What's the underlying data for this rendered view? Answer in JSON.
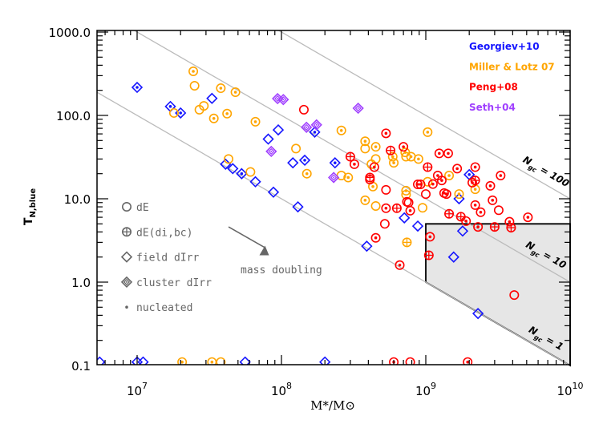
{
  "chart_data": {
    "type": "scatter",
    "xlabel": "M*/M⊙",
    "ylabel": "T_N,blue",
    "xscale": "log",
    "yscale": "log",
    "xlim": [
      5270000.0,
      10000000000.0
    ],
    "ylim": [
      0.102,
      1045
    ],
    "x_ticks": [
      {
        "value": 10000000.0,
        "base": "10",
        "exp": "7"
      },
      {
        "value": 100000000.0,
        "base": "10",
        "exp": "8"
      },
      {
        "value": 1000000000.0,
        "base": "10",
        "exp": "9"
      },
      {
        "value": 10000000000.0,
        "base": "10",
        "exp": "10"
      }
    ],
    "y_ticks": [
      {
        "value": 1000,
        "label": "1000.0"
      },
      {
        "value": 100,
        "label": "100.0"
      },
      {
        "value": 10,
        "label": "10.0"
      },
      {
        "value": 1,
        "label": "1.0"
      },
      {
        "value": 0.1,
        "label": "0.1"
      }
    ],
    "grid": false,
    "reference_lines": [
      {
        "ngc": 1,
        "label": "N",
        "sub": "gc",
        "eq": " = 1"
      },
      {
        "ngc": 10,
        "label": "N",
        "sub": "gc",
        "eq": " = 10"
      },
      {
        "ngc": 100,
        "label": "N",
        "sub": "gc",
        "eq": " = 100"
      }
    ],
    "shaded_region": [
      [
        1000000000.0,
        5
      ],
      [
        10000000000.0,
        5
      ],
      [
        10000000000.0,
        0.1
      ],
      [
        1000000000.0,
        1
      ]
    ],
    "annotation": {
      "text": "mass doubling",
      "arrow_from": [
        43000000.0,
        4.6
      ],
      "arrow_to": [
        82000000.0,
        2.4
      ]
    },
    "symbol_legend": [
      {
        "symbol": "circle",
        "nuc": 0,
        "label": "dE"
      },
      {
        "symbol": "circle-cross",
        "nuc": 0,
        "label": "dE(di,bc)"
      },
      {
        "symbol": "diamond",
        "nuc": 0,
        "label": "field dIrr"
      },
      {
        "symbol": "double-diamond",
        "nuc": 0,
        "label": "cluster dIrr"
      },
      {
        "symbol": "dot",
        "nuc": 1,
        "label": "nucleated"
      }
    ],
    "legend_placement": "top-right",
    "series": [
      {
        "name": "Georgiev+10",
        "color": "#1515ff",
        "points": [
          [
            10000000.0,
            217,
            "diamond",
            1
          ],
          [
            17000000.0,
            128,
            "diamond",
            1
          ],
          [
            20000000.0,
            107,
            "diamond",
            1
          ],
          [
            33000000.0,
            160,
            "diamond",
            0
          ],
          [
            41000000.0,
            26,
            "diamond",
            0
          ],
          [
            46000000.0,
            23,
            "diamond",
            0
          ],
          [
            53000000.0,
            20,
            "diamond",
            1
          ],
          [
            66000000.0,
            16,
            "diamond",
            0
          ],
          [
            88000000.0,
            12,
            "diamond",
            0
          ],
          [
            81000000.0,
            52,
            "diamond",
            0
          ],
          [
            95000000.0,
            67,
            "diamond",
            0
          ],
          [
            120000000.0,
            27,
            "diamond",
            0
          ],
          [
            145000000.0,
            29,
            "diamond",
            1
          ],
          [
            170000000.0,
            63,
            "diamond",
            1
          ],
          [
            130000000.0,
            8,
            "diamond",
            0
          ],
          [
            235000000.0,
            27,
            "diamond",
            1
          ],
          [
            390000000.0,
            2.7,
            "diamond",
            0
          ],
          [
            710000000.0,
            5.9,
            "diamond",
            0
          ],
          [
            880000000.0,
            4.7,
            "diamond",
            0
          ],
          [
            1700000000.0,
            10,
            "diamond",
            0
          ],
          [
            1800000000.0,
            4.1,
            "diamond",
            0
          ],
          [
            1560000000.0,
            2.0,
            "diamond",
            0
          ],
          [
            2300000000.0,
            0.42,
            "diamond",
            0
          ],
          [
            2000000000.0,
            19.5,
            "diamond",
            1
          ],
          [
            5500000.0,
            0.11,
            "diamond",
            0
          ],
          [
            10000000.0,
            0.11,
            "diamond",
            0
          ],
          [
            11000000.0,
            0.11,
            "diamond",
            0
          ],
          [
            56000000.0,
            0.11,
            "diamond",
            0
          ],
          [
            200000000.0,
            0.11,
            "diamond",
            0
          ]
        ]
      },
      {
        "name": "Miller & Lotz 07",
        "color": "#ffa500",
        "points": [
          [
            24500000.0,
            338,
            "circle",
            1
          ],
          [
            25000000.0,
            227,
            "circle",
            0
          ],
          [
            38000000.0,
            212,
            "circle",
            1
          ],
          [
            48000000.0,
            190,
            "circle",
            1
          ],
          [
            18000000.0,
            107,
            "circle",
            0
          ],
          [
            27000000.0,
            117,
            "circle",
            0
          ],
          [
            29000000.0,
            130,
            "circle",
            0
          ],
          [
            34000000.0,
            92,
            "circle",
            1
          ],
          [
            42000000.0,
            105,
            "circle",
            1
          ],
          [
            66000000.0,
            84,
            "circle",
            1
          ],
          [
            43000000.0,
            30,
            "circle",
            0
          ],
          [
            61000000.0,
            21,
            "circle",
            0
          ],
          [
            126000000.0,
            40,
            "circle",
            0
          ],
          [
            150000000.0,
            20,
            "circle",
            1
          ],
          [
            260000000.0,
            66,
            "circle",
            1
          ],
          [
            380000000.0,
            49,
            "circle",
            1
          ],
          [
            380000000.0,
            40,
            "circle",
            0
          ],
          [
            450000000.0,
            42,
            "circle",
            1
          ],
          [
            450000000.0,
            30,
            "circle",
            0
          ],
          [
            420000000.0,
            26,
            "circle",
            0
          ],
          [
            260000000.0,
            19,
            "circle",
            0
          ],
          [
            290000000.0,
            18,
            "circle",
            1
          ],
          [
            430000000.0,
            14,
            "circle",
            1
          ],
          [
            590000000.0,
            32,
            "circle",
            1
          ],
          [
            600000000.0,
            27,
            "circle",
            1
          ],
          [
            720000000.0,
            36,
            "circle",
            1
          ],
          [
            730000000.0,
            32,
            "circle",
            0
          ],
          [
            790000000.0,
            32,
            "circle",
            1
          ],
          [
            890000000.0,
            30,
            "circle",
            1
          ],
          [
            1030000000.0,
            63,
            "circle",
            1
          ],
          [
            1030000000.0,
            16,
            "circle",
            0
          ],
          [
            1450000000.0,
            19,
            "circle",
            1
          ],
          [
            1700000000.0,
            11.4,
            "circle",
            1
          ],
          [
            2200000000.0,
            13,
            "circle",
            1
          ],
          [
            730000000.0,
            12.5,
            "circle",
            1
          ],
          [
            730000000.0,
            11.2,
            "circle",
            0
          ],
          [
            380000000.0,
            9.6,
            "circle",
            1
          ],
          [
            450000000.0,
            8.2,
            "circle",
            0
          ],
          [
            950000000.0,
            7.8,
            "circle",
            0
          ],
          [
            740000000.0,
            3.0,
            "circle-cross",
            0
          ],
          [
            20500000.0,
            0.11,
            "circle",
            1
          ],
          [
            33000000.0,
            0.11,
            "circle",
            1
          ],
          [
            38000000.0,
            0.11,
            "circle",
            0
          ]
        ]
      },
      {
        "name": "Peng+08",
        "color": "#ff0000",
        "points": [
          [
            143000000.0,
            117,
            "circle",
            0
          ],
          [
            530000000.0,
            61,
            "circle",
            1
          ],
          [
            300000000.0,
            32,
            "circle-cross",
            0
          ],
          [
            320000000.0,
            26,
            "circle",
            1
          ],
          [
            440000000.0,
            24,
            "circle",
            1
          ],
          [
            570000000.0,
            38,
            "circle-cross",
            0
          ],
          [
            700000000.0,
            42,
            "circle",
            1
          ],
          [
            1240000000.0,
            35,
            "circle",
            1
          ],
          [
            1430000000.0,
            35,
            "circle",
            1
          ],
          [
            1030000000.0,
            24,
            "circle-cross",
            0
          ],
          [
            1650000000.0,
            23,
            "circle",
            1
          ],
          [
            2200000000.0,
            24,
            "circle",
            1
          ],
          [
            3300000000.0,
            19,
            "circle",
            1
          ],
          [
            1210000000.0,
            19,
            "circle",
            1
          ],
          [
            1290000000.0,
            16.6,
            "circle",
            1
          ],
          [
            1120000000.0,
            15,
            "circle",
            1
          ],
          [
            880000000.0,
            14.9,
            "circle",
            1
          ],
          [
            920000000.0,
            14.9,
            "circle",
            1
          ],
          [
            410000000.0,
            18,
            "circle-cross",
            0
          ],
          [
            410000000.0,
            17,
            "circle",
            0
          ],
          [
            530000000.0,
            12.8,
            "circle",
            0
          ],
          [
            1000000000.0,
            11.4,
            "circle",
            0
          ],
          [
            1340000000.0,
            11.7,
            "circle",
            1
          ],
          [
            2100000000.0,
            15.6,
            "circle",
            1
          ],
          [
            2200000000.0,
            16.6,
            "circle-cross",
            0
          ],
          [
            2800000000.0,
            14.3,
            "circle",
            1
          ],
          [
            2900000000.0,
            9.6,
            "circle",
            1
          ],
          [
            2200000000.0,
            8.4,
            "circle",
            1
          ],
          [
            740000000.0,
            9.2,
            "circle",
            0
          ],
          [
            530000000.0,
            7.7,
            "circle",
            1
          ],
          [
            630000000.0,
            7.7,
            "circle-cross",
            0
          ],
          [
            760000000.0,
            9.0,
            "circle",
            0
          ],
          [
            780000000.0,
            7.2,
            "circle",
            1
          ],
          [
            1390000000.0,
            11.4,
            "circle",
            1
          ],
          [
            1450000000.0,
            6.6,
            "circle-cross",
            0
          ],
          [
            1750000000.0,
            6.1,
            "circle-cross",
            0
          ],
          [
            1900000000.0,
            5.4,
            "circle",
            1
          ],
          [
            2400000000.0,
            6.9,
            "circle",
            1
          ],
          [
            3200000000.0,
            7.3,
            "circle",
            0
          ],
          [
            3800000000.0,
            5.3,
            "circle",
            1
          ],
          [
            5100000000.0,
            6.0,
            "circle",
            1
          ],
          [
            520000000.0,
            5.0,
            "circle",
            0
          ],
          [
            2300000000.0,
            4.6,
            "circle",
            1
          ],
          [
            3000000000.0,
            4.6,
            "circle-cross",
            0
          ],
          [
            3900000000.0,
            4.5,
            "circle-cross",
            0
          ],
          [
            450000000.0,
            3.4,
            "circle",
            1
          ],
          [
            1070000000.0,
            3.5,
            "circle",
            1
          ],
          [
            1050000000.0,
            2.1,
            "circle-cross",
            0
          ],
          [
            660000000.0,
            1.6,
            "circle",
            1
          ],
          [
            4100000000.0,
            0.7,
            "circle",
            0
          ],
          [
            600000000.0,
            0.11,
            "circle",
            1
          ],
          [
            780000000.0,
            0.11,
            "circle",
            0
          ],
          [
            1950000000.0,
            0.11,
            "circle",
            1
          ]
        ]
      },
      {
        "name": "Seth+04",
        "color": "#a040ff",
        "points": [
          [
            94000000.0,
            159,
            "double-diamond",
            0
          ],
          [
            103000000.0,
            155,
            "double-diamond",
            0
          ],
          [
            149000000.0,
            72,
            "double-diamond",
            0
          ],
          [
            175000000.0,
            77,
            "double-diamond",
            0
          ],
          [
            85000000.0,
            37,
            "double-diamond",
            0
          ],
          [
            230000000.0,
            18,
            "double-diamond",
            0
          ],
          [
            340000000.0,
            122,
            "double-diamond",
            0
          ]
        ]
      }
    ]
  }
}
